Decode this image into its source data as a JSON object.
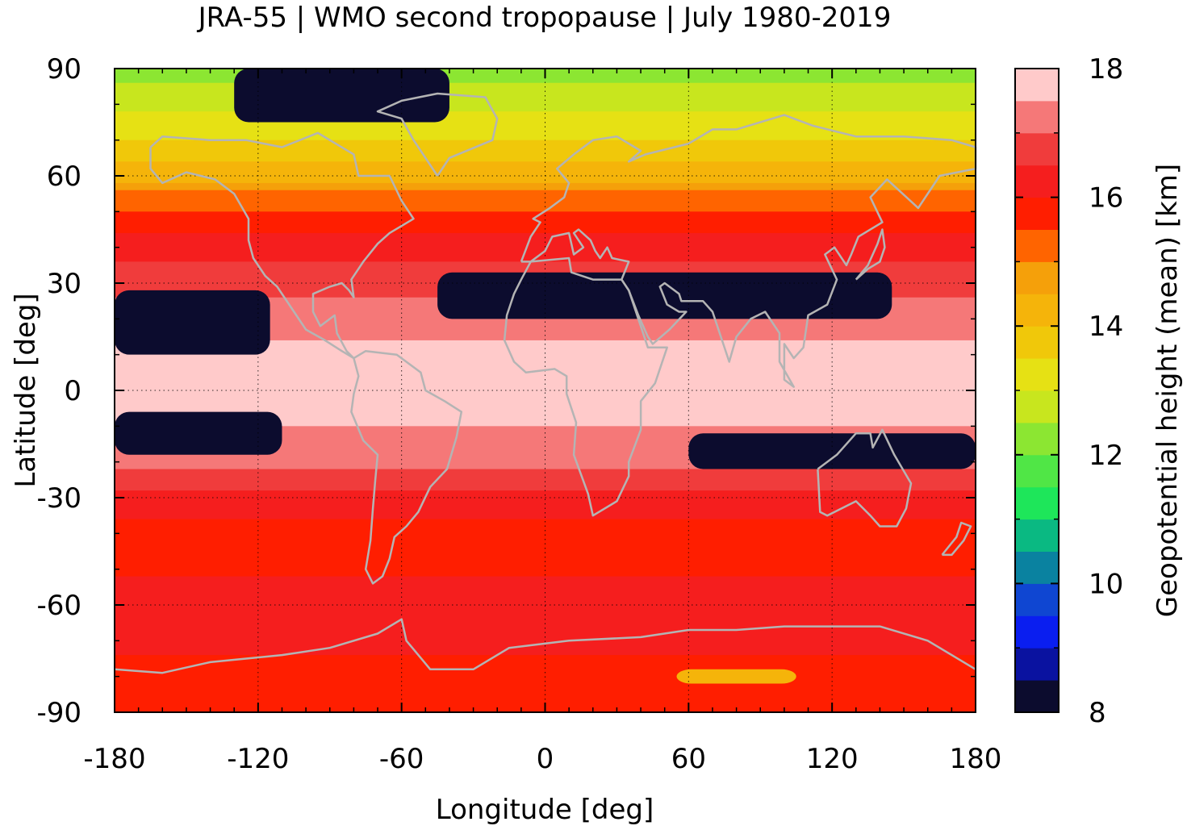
{
  "chart_data": {
    "type": "heatmap",
    "title": "JRA-55 | WMO second tropopause | July 1980-2019",
    "xlabel": "Longitude [deg]",
    "ylabel": "Latitude [deg]",
    "xlim": [
      -180,
      180
    ],
    "ylim": [
      -90,
      90
    ],
    "xticks": [
      "-180",
      "-120",
      "-60",
      "0",
      "60",
      "120",
      "180"
    ],
    "yticks": [
      "90",
      "60",
      "30",
      "0",
      "-30",
      "-60",
      "-90"
    ],
    "grid": true,
    "colorbar": {
      "label": "Geopotential height (mean) [km]",
      "range": [
        8,
        18
      ],
      "ticks": [
        "18",
        "16",
        "14",
        "12",
        "10",
        "8"
      ],
      "levels": [
        {
          "from": 8.0,
          "to": 8.5,
          "color": "#0c0c2e"
        },
        {
          "from": 8.5,
          "to": 9.0,
          "color": "#0a12a0"
        },
        {
          "from": 9.0,
          "to": 9.5,
          "color": "#0a1ef0"
        },
        {
          "from": 9.5,
          "to": 10.0,
          "color": "#0f46d2"
        },
        {
          "from": 10.0,
          "to": 10.5,
          "color": "#0a82a0"
        },
        {
          "from": 10.5,
          "to": 11.0,
          "color": "#0ab982"
        },
        {
          "from": 11.0,
          "to": 11.5,
          "color": "#1ee65a"
        },
        {
          "from": 11.5,
          "to": 12.0,
          "color": "#50e646"
        },
        {
          "from": 12.0,
          "to": 12.5,
          "color": "#8ce632"
        },
        {
          "from": 12.5,
          "to": 13.0,
          "color": "#c8e61e"
        },
        {
          "from": 13.0,
          "to": 13.5,
          "color": "#e6e114"
        },
        {
          "from": 13.5,
          "to": 14.0,
          "color": "#f0c80a"
        },
        {
          "from": 14.0,
          "to": 14.5,
          "color": "#f5b40a"
        },
        {
          "from": 14.5,
          "to": 15.0,
          "color": "#f5a00a"
        },
        {
          "from": 15.0,
          "to": 15.5,
          "color": "#ff6400"
        },
        {
          "from": 15.5,
          "to": 16.0,
          "color": "#ff1e00"
        },
        {
          "from": 16.0,
          "to": 16.5,
          "color": "#f51e1e"
        },
        {
          "from": 16.5,
          "to": 17.0,
          "color": "#f03c3c"
        },
        {
          "from": 17.0,
          "to": 17.5,
          "color": "#f57878"
        },
        {
          "from": 17.5,
          "to": 18.0,
          "color": "#ffcaca"
        }
      ]
    },
    "zonal_profile": [
      {
        "lat": 90,
        "km": 12.3
      },
      {
        "lat": 80,
        "km": 12.8
      },
      {
        "lat": 70,
        "km": 13.5
      },
      {
        "lat": 60,
        "km": 14.3
      },
      {
        "lat": 55,
        "km": 15.0
      },
      {
        "lat": 50,
        "km": 15.6
      },
      {
        "lat": 40,
        "km": 16.2
      },
      {
        "lat": 30,
        "km": 16.8
      },
      {
        "lat": 20,
        "km": 17.3
      },
      {
        "lat": 10,
        "km": 17.6
      },
      {
        "lat": 0,
        "km": 17.7
      },
      {
        "lat": -10,
        "km": 17.5
      },
      {
        "lat": -20,
        "km": 17.1
      },
      {
        "lat": -30,
        "km": 16.3
      },
      {
        "lat": -40,
        "km": 15.8
      },
      {
        "lat": -50,
        "km": 15.9
      },
      {
        "lat": -60,
        "km": 16.4
      },
      {
        "lat": -70,
        "km": 16.1
      },
      {
        "lat": -80,
        "km": 15.8
      },
      {
        "lat": -90,
        "km": 15.7
      }
    ],
    "features": [
      {
        "type": "no-second-tropopause",
        "value_km": 8,
        "lat_range": [
          20,
          33
        ],
        "lon_range": [
          -45,
          145
        ]
      },
      {
        "type": "no-second-tropopause",
        "value_km": 8,
        "lat_range": [
          10,
          28
        ],
        "lon_range": [
          -180,
          -115
        ]
      },
      {
        "type": "no-second-tropopause",
        "value_km": 8,
        "lat_range": [
          -18,
          -6
        ],
        "lon_range": [
          -180,
          -110
        ]
      },
      {
        "type": "no-second-tropopause",
        "value_km": 8,
        "lat_range": [
          -22,
          -12
        ],
        "lon_range": [
          60,
          180
        ]
      },
      {
        "type": "no-second-tropopause",
        "value_km": 8,
        "lat_range": [
          75,
          90
        ],
        "lon_range": [
          -130,
          -40
        ]
      },
      {
        "type": "local-minimum",
        "value_km": 14.0,
        "lat_range": [
          -82,
          -78
        ],
        "lon_range": [
          55,
          105
        ]
      }
    ]
  }
}
